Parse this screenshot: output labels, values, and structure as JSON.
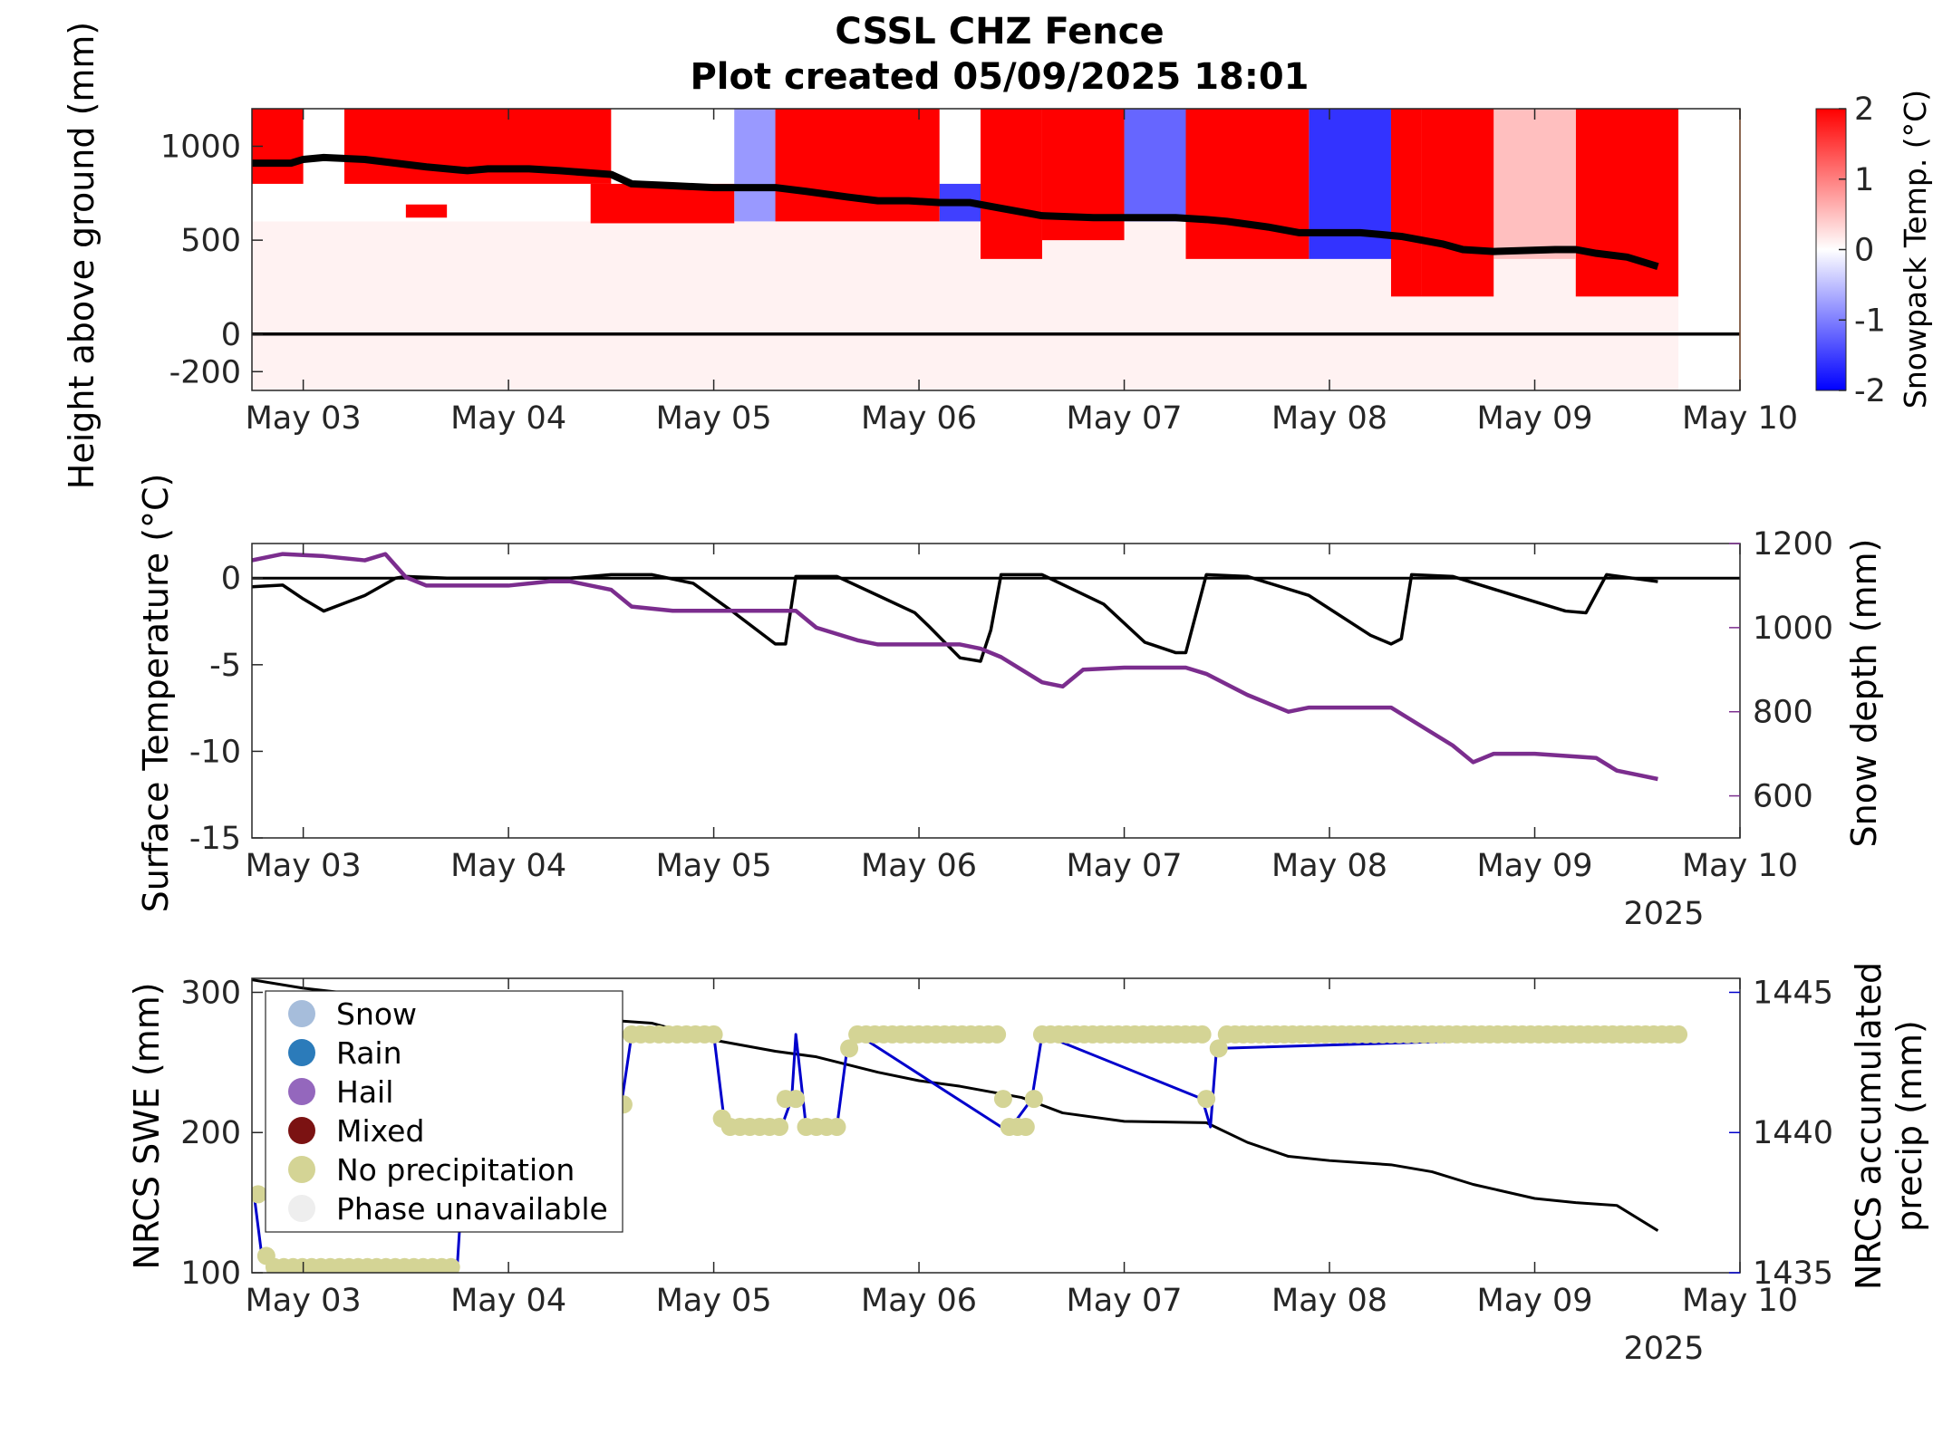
{
  "figure": {
    "title_line1": "CSSL CHZ Fence",
    "title_line2": "Plot created 05/09/2025 18:01"
  },
  "chart_data": [
    {
      "type": "heatmap",
      "x_tick_labels": [
        "May 03",
        "May 04",
        "May 05",
        "May 06",
        "May 07",
        "May 08",
        "May 09",
        "May 10"
      ],
      "x_ticks_days": [
        3,
        4,
        5,
        6,
        7,
        8,
        9,
        10
      ],
      "xlim_days": [
        2.75,
        10.0
      ],
      "ylabel": "Height above ground (mm)",
      "y_ticks": [
        -200,
        0,
        500,
        1000
      ],
      "ylim": [
        -300,
        1200
      ],
      "colorbar": {
        "label": "Snowpack Temp. (°C)",
        "ticks": [
          -2,
          -1,
          0,
          1,
          2
        ],
        "range": [
          -2,
          2
        ],
        "colormap": [
          "#0000ff",
          "#ffffff",
          "#ff0000"
        ]
      },
      "ground_line_mm": 0,
      "snow_depth_line": {
        "color": "#000000",
        "x_days": [
          2.75,
          2.94,
          3.0,
          3.1,
          3.3,
          3.45,
          3.6,
          3.8,
          3.9,
          4.1,
          4.25,
          4.5,
          4.6,
          4.8,
          5.0,
          5.3,
          5.45,
          5.65,
          5.8,
          5.95,
          6.1,
          6.25,
          6.4,
          6.6,
          6.85,
          7.0,
          7.25,
          7.4,
          7.5,
          7.7,
          7.85,
          8.0,
          8.15,
          8.35,
          8.55,
          8.65,
          8.8,
          9.1,
          9.2,
          9.3,
          9.45,
          9.6
        ],
        "y_mm": [
          910,
          910,
          930,
          940,
          930,
          910,
          890,
          870,
          880,
          880,
          870,
          850,
          800,
          790,
          780,
          780,
          760,
          730,
          710,
          710,
          700,
          700,
          670,
          630,
          620,
          620,
          620,
          610,
          600,
          570,
          540,
          540,
          540,
          520,
          480,
          450,
          440,
          450,
          450,
          430,
          410,
          360
        ]
      },
      "temperature_field": [
        {
          "x": [
            2.75,
            3.0
          ],
          "y": [
            800,
            1200
          ],
          "t": 2.0
        },
        {
          "x": [
            3.0,
            3.2
          ],
          "y": [
            800,
            1200
          ],
          "t": 0.0
        },
        {
          "x": [
            3.2,
            4.5
          ],
          "y": [
            800,
            1200
          ],
          "t": 2.0
        },
        {
          "x": [
            3.5,
            3.7
          ],
          "y": [
            620,
            690
          ],
          "t": 2.0
        },
        {
          "x": [
            4.4,
            5.1
          ],
          "y": [
            590,
            800
          ],
          "t": 2.0
        },
        {
          "x": [
            5.1,
            5.3
          ],
          "y": [
            600,
            1200
          ],
          "t": -0.8
        },
        {
          "x": [
            5.3,
            6.1
          ],
          "y": [
            600,
            1200
          ],
          "t": 2.0
        },
        {
          "x": [
            6.1,
            6.3
          ],
          "y": [
            600,
            800
          ],
          "t": -1.5
        },
        {
          "x": [
            6.3,
            6.6
          ],
          "y": [
            400,
            1200
          ],
          "t": 2.0
        },
        {
          "x": [
            6.6,
            7.0
          ],
          "y": [
            500,
            1200
          ],
          "t": 2.0
        },
        {
          "x": [
            7.0,
            7.3
          ],
          "y": [
            600,
            1200
          ],
          "t": -1.2
        },
        {
          "x": [
            7.3,
            7.9
          ],
          "y": [
            400,
            1200
          ],
          "t": 2.0
        },
        {
          "x": [
            7.9,
            8.3
          ],
          "y": [
            400,
            1200
          ],
          "t": -1.6
        },
        {
          "x": [
            8.3,
            8.45
          ],
          "y": [
            200,
            1200
          ],
          "t": 2.0
        },
        {
          "x": [
            8.45,
            8.8
          ],
          "y": [
            200,
            1200
          ],
          "t": 2.0
        },
        {
          "x": [
            8.8,
            9.2
          ],
          "y": [
            400,
            1200
          ],
          "t": 0.5
        },
        {
          "x": [
            9.2,
            9.7
          ],
          "y": [
            200,
            1200
          ],
          "t": 2.0
        },
        {
          "x": [
            2.75,
            9.7
          ],
          "y": [
            -300,
            600
          ],
          "t": 0.1
        }
      ]
    },
    {
      "type": "line",
      "x_tick_labels": [
        "May 03",
        "May 04",
        "May 05",
        "May 06",
        "May 07",
        "May 08",
        "May 09",
        "May 10"
      ],
      "x_ticks_days": [
        3,
        4,
        5,
        6,
        7,
        8,
        9,
        10
      ],
      "xlim_days": [
        2.75,
        10.0
      ],
      "year_label": "2025",
      "ylabel": "Surface Temperature (°C)",
      "y_ticks": [
        -15,
        -10,
        -5,
        0
      ],
      "ylim": [
        -15,
        2
      ],
      "y2label": "Snow depth (mm)",
      "y2_ticks": [
        600,
        800,
        1000,
        1200
      ],
      "y2lim": [
        500,
        1200
      ],
      "zero_line": 0,
      "series": [
        {
          "color": "#000000",
          "axis": "left",
          "x": [
            2.75,
            2.9,
            3.0,
            3.1,
            3.3,
            3.45,
            3.5,
            3.7,
            4.0,
            4.3,
            4.5,
            4.7,
            4.9,
            5.1,
            5.3,
            5.35,
            5.4,
            5.6,
            5.8,
            5.98,
            6.05,
            6.2,
            6.3,
            6.35,
            6.4,
            6.6,
            6.9,
            7.1,
            7.25,
            7.3,
            7.4,
            7.6,
            7.9,
            8.2,
            8.3,
            8.35,
            8.4,
            8.6,
            8.9,
            9.15,
            9.25,
            9.35,
            9.6
          ],
          "y": [
            -0.5,
            -0.4,
            -1.2,
            -1.9,
            -1.0,
            0.0,
            0.1,
            0.0,
            0.0,
            0.0,
            0.2,
            0.2,
            -0.3,
            -2.0,
            -3.8,
            -3.8,
            0.1,
            0.1,
            -1.0,
            -2.0,
            -2.8,
            -4.6,
            -4.8,
            -3.0,
            0.2,
            0.2,
            -1.5,
            -3.7,
            -4.3,
            -4.3,
            0.2,
            0.1,
            -1.0,
            -3.3,
            -3.8,
            -3.5,
            0.2,
            0.1,
            -1.0,
            -1.9,
            -2.0,
            0.2,
            -0.2
          ]
        },
        {
          "color": "#7b2d8e",
          "axis": "right",
          "x": [
            2.75,
            2.9,
            3.1,
            3.3,
            3.4,
            3.5,
            3.6,
            3.8,
            4.0,
            4.2,
            4.3,
            4.5,
            4.6,
            4.8,
            5.0,
            5.2,
            5.4,
            5.5,
            5.7,
            5.8,
            5.9,
            6.0,
            6.2,
            6.3,
            6.4,
            6.6,
            6.7,
            6.8,
            7.0,
            7.3,
            7.4,
            7.6,
            7.7,
            7.8,
            7.9,
            8.0,
            8.3,
            8.4,
            8.6,
            8.7,
            8.8,
            9.0,
            9.3,
            9.4,
            9.5,
            9.6
          ],
          "y": [
            1160,
            1175,
            1170,
            1160,
            1175,
            1120,
            1100,
            1100,
            1100,
            1110,
            1110,
            1090,
            1050,
            1040,
            1040,
            1040,
            1040,
            1000,
            970,
            960,
            960,
            960,
            960,
            950,
            930,
            870,
            860,
            900,
            905,
            905,
            890,
            840,
            820,
            800,
            810,
            810,
            810,
            780,
            720,
            680,
            700,
            700,
            690,
            660,
            650,
            640
          ]
        }
      ]
    },
    {
      "type": "line",
      "x_tick_labels": [
        "May 03",
        "May 04",
        "May 05",
        "May 06",
        "May 07",
        "May 08",
        "May 09",
        "May 10"
      ],
      "x_ticks_days": [
        3,
        4,
        5,
        6,
        7,
        8,
        9,
        10
      ],
      "xlim_days": [
        2.75,
        10.0
      ],
      "year_label": "2025",
      "ylabel": "NRCS SWE (mm)",
      "y_ticks": [
        100,
        200,
        300
      ],
      "ylim": [
        100,
        310
      ],
      "y2label_line1": "NRCS accumulated",
      "y2label_line2": "precip (mm)",
      "y2_ticks": [
        1435,
        1440,
        1445
      ],
      "y2lim": [
        1435,
        1445.5
      ],
      "legend": {
        "position": "upper-left",
        "entries": [
          {
            "label": "Snow",
            "color": "#a6bddb"
          },
          {
            "label": "Rain",
            "color": "#2b7bba"
          },
          {
            "label": "Hail",
            "color": "#9467bd"
          },
          {
            "label": "Mixed",
            "color": "#7b1212"
          },
          {
            "label": "No precipitation",
            "color": "#d4d495"
          },
          {
            "label": "Phase unavailable",
            "color": "#eeeeee"
          }
        ]
      },
      "swe_series": {
        "color": "#000000",
        "x": [
          2.75,
          3.0,
          3.3,
          3.6,
          3.9,
          4.2,
          4.5,
          4.7,
          5.0,
          5.3,
          5.5,
          5.8,
          6.0,
          6.2,
          6.5,
          6.7,
          7.0,
          7.4,
          7.6,
          7.8,
          8.0,
          8.3,
          8.5,
          8.7,
          9.0,
          9.2,
          9.4,
          9.6
        ],
        "y": [
          309,
          303,
          298,
          290,
          285,
          282,
          280,
          278,
          266,
          258,
          254,
          243,
          237,
          233,
          225,
          214,
          208,
          207,
          193,
          183,
          180,
          177,
          172,
          163,
          153,
          150,
          148,
          130
        ]
      },
      "precip_series": {
        "color": "#0000cc",
        "x": [
          2.76,
          2.8,
          2.85,
          3.75,
          3.8,
          4.55,
          4.6,
          5.0,
          5.05,
          5.1,
          5.33,
          5.38,
          5.4,
          5.45,
          5.6,
          5.65,
          5.7,
          6.4,
          6.45,
          6.55,
          6.6,
          7.38,
          7.42,
          7.45,
          9.7
        ],
        "y": [
          1437.8,
          1435.5,
          1435.2,
          1435.2,
          1441.0,
          1441.0,
          1443.5,
          1443.5,
          1440.5,
          1440.2,
          1440.2,
          1441.2,
          1443.5,
          1440.2,
          1440.2,
          1443.0,
          1443.5,
          1440.2,
          1440.2,
          1441.2,
          1443.5,
          1441.2,
          1440.2,
          1443.0,
          1443.5
        ]
      },
      "precip_markers": [
        {
          "x": 2.78,
          "y": 1437.8
        },
        {
          "x": 2.82,
          "y": 1435.6
        },
        {
          "x_range": [
            2.86,
            3.72
          ],
          "y": 1435.2,
          "count": 20
        },
        {
          "x": 4.56,
          "y": 1441.0
        },
        {
          "x_range": [
            4.6,
            5.0
          ],
          "y": 1443.5,
          "count": 10
        },
        {
          "x": 5.04,
          "y": 1440.5
        },
        {
          "x_range": [
            5.08,
            5.32
          ],
          "y": 1440.2,
          "count": 6
        },
        {
          "x_range": [
            5.35,
            5.4
          ],
          "y": 1441.2,
          "count": 2
        },
        {
          "x_range": [
            5.45,
            5.6
          ],
          "y": 1440.2,
          "count": 4
        },
        {
          "x": 5.66,
          "y": 1443.0
        },
        {
          "x_range": [
            5.7,
            6.38
          ],
          "y": 1443.5,
          "count": 17
        },
        {
          "x": 6.41,
          "y": 1441.2
        },
        {
          "x_range": [
            6.44,
            6.52
          ],
          "y": 1440.2,
          "count": 3
        },
        {
          "x": 6.56,
          "y": 1441.2
        },
        {
          "x_range": [
            6.6,
            7.38
          ],
          "y": 1443.5,
          "count": 20
        },
        {
          "x": 7.4,
          "y": 1441.2
        },
        {
          "x": 7.46,
          "y": 1443.0
        },
        {
          "x_range": [
            7.5,
            9.7
          ],
          "y": 1443.5,
          "count": 56
        }
      ]
    }
  ]
}
